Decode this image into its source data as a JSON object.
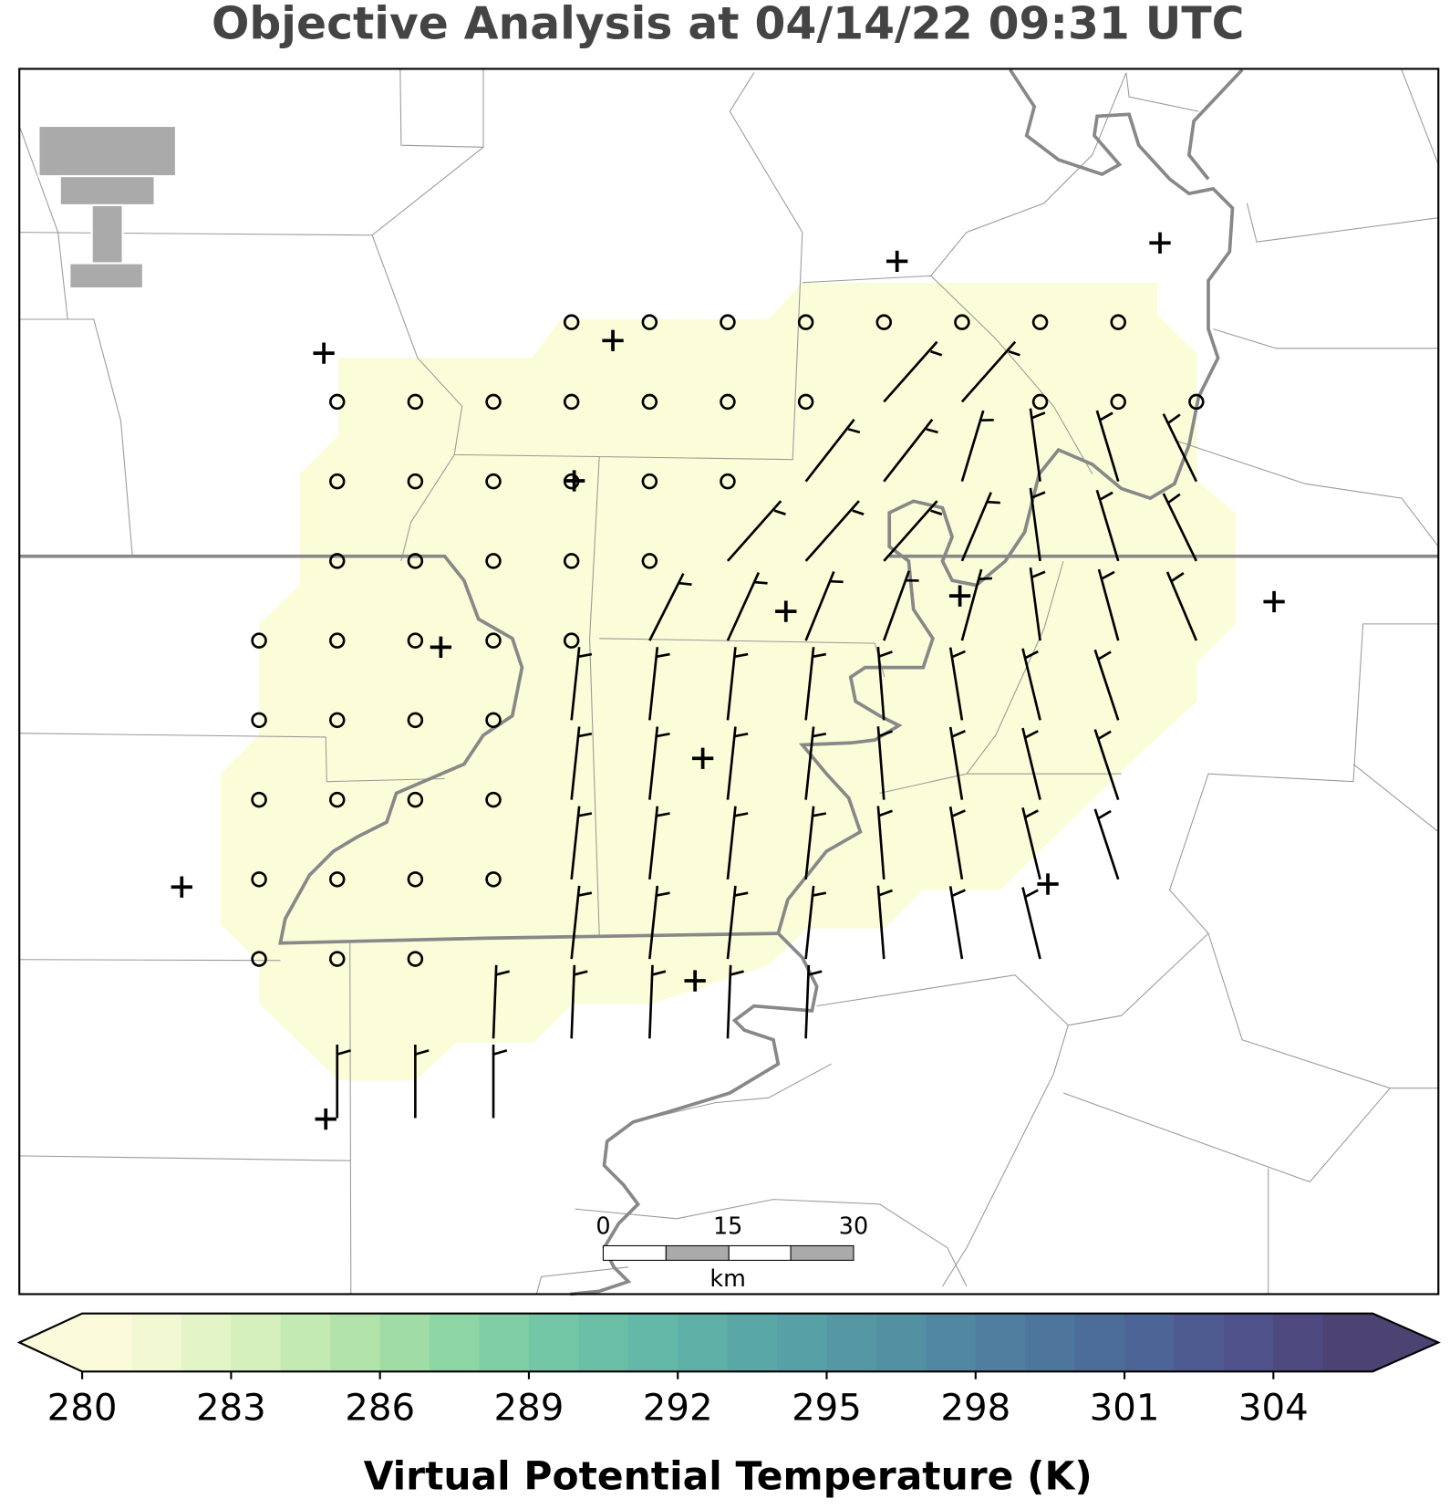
{
  "title": "Objective Analysis at 04/14/22 09:31 UTC",
  "scale_bar": {
    "ticks": [
      "0",
      "15",
      "30"
    ],
    "unit": "km"
  },
  "colorbar": {
    "label": "Virtual Potential Temperature (K)",
    "range": [
      280,
      306
    ],
    "ticks": [
      280,
      283,
      286,
      289,
      292,
      295,
      298,
      301,
      304
    ],
    "colors": [
      "#fbfbdb",
      "#f1f8d2",
      "#e3f4c7",
      "#d5efbd",
      "#c4eab3",
      "#b1e3ab",
      "#9fdca6",
      "#8dd5a3",
      "#7fcea5",
      "#74c7a6",
      "#6bbfa7",
      "#63b8a7",
      "#5eb0a7",
      "#5aa8a6",
      "#57a0a5",
      "#5598a3",
      "#5390a2",
      "#5187a0",
      "#507e9e",
      "#4e769c",
      "#4d6d99",
      "#4d6496",
      "#4e5b91",
      "#4f528a",
      "#4e4a80",
      "#4c4373"
    ]
  }
}
